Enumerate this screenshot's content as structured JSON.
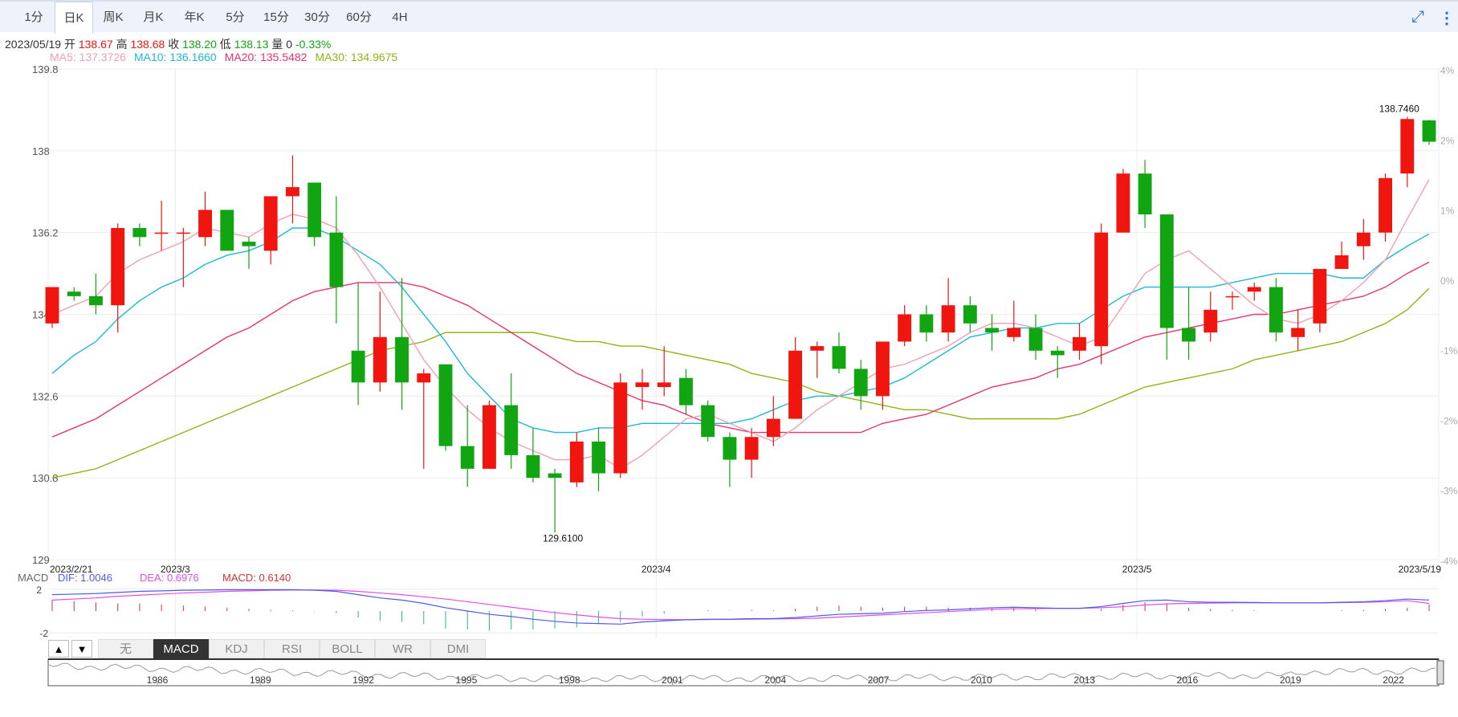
{
  "periods": [
    "1分",
    "日K",
    "周K",
    "月K",
    "年K",
    "5分",
    "15分",
    "30分",
    "60分",
    "4H"
  ],
  "active_period": "日K",
  "toolbar": {
    "collapse_icon": "collapse-icon",
    "more_icon": "more-vertical-icon"
  },
  "quote": {
    "date": "2023/05/19",
    "open_label": "开",
    "open": "138.67",
    "high_label": "高",
    "high": "138.68",
    "close_label": "收",
    "close": "138.20",
    "low_label": "低",
    "low": "138.13",
    "volume_label": "量",
    "volume": "0",
    "change": "-0.33%"
  },
  "ma_legend": [
    {
      "text": "MA5: 137.3726",
      "color": "#f0a0b4"
    },
    {
      "text": "MA10: 136.1660",
      "color": "#1fb8d8"
    },
    {
      "text": "MA20: 135.5482",
      "color": "#e8336d"
    },
    {
      "text": "MA30: 134.9675",
      "color": "#8db517"
    }
  ],
  "macd_legend": {
    "label": "MACD",
    "dif": "DIF: 1.0046",
    "dea": "DEA: 0.6976",
    "macd": "MACD: 0.6140"
  },
  "indicator_tabs": [
    "无",
    "MACD",
    "KDJ",
    "RSI",
    "BOLL",
    "WR",
    "DMI"
  ],
  "active_indicator": "MACD",
  "nav_arrows": {
    "up": "▲",
    "down": "▼"
  },
  "colors": {
    "up": "#f0150f",
    "down": "#11a611",
    "grid": "#ececec",
    "dif": "#4a5ce8",
    "dea": "#e64ce6"
  },
  "chart_data": {
    "type": "candlestick",
    "price_axis": {
      "ticks": [
        "139.8",
        "138",
        "136.2",
        "134.4",
        "132.6",
        "130.8",
        "129"
      ],
      "ylim": [
        129,
        139.8
      ]
    },
    "pct_axis": {
      "ticks": [
        "4%",
        "2%",
        "1%",
        "0%",
        "-1%",
        "-2%",
        "-3%",
        "-4%"
      ]
    },
    "x_labels": [
      "2023/2/21",
      "2023/3",
      "2023/4",
      "2023/5",
      "2023/5/19"
    ],
    "annotations": [
      "129.6100",
      "138.7460"
    ],
    "candles": [
      [
        134.2,
        135.0,
        134.1,
        135.0
      ],
      [
        134.9,
        134.8,
        134.7,
        135.0
      ],
      [
        134.8,
        134.6,
        134.4,
        135.3
      ],
      [
        134.6,
        136.3,
        134.0,
        136.4
      ],
      [
        136.3,
        136.1,
        135.9,
        136.4
      ],
      [
        136.2,
        136.2,
        135.8,
        136.9
      ],
      [
        136.2,
        136.2,
        135.0,
        136.3
      ],
      [
        136.1,
        136.7,
        135.9,
        137.1
      ],
      [
        136.7,
        135.8,
        135.8,
        136.7
      ],
      [
        136.0,
        135.9,
        135.4,
        136.1
      ],
      [
        135.8,
        137.0,
        135.5,
        137.0
      ],
      [
        137.0,
        137.2,
        136.4,
        137.9
      ],
      [
        137.3,
        136.1,
        135.9,
        137.3
      ],
      [
        136.2,
        135.0,
        134.2,
        137.0
      ],
      [
        133.6,
        132.9,
        132.4,
        135.1
      ],
      [
        132.9,
        133.9,
        132.7,
        134.9
      ],
      [
        133.9,
        132.9,
        132.3,
        135.2
      ],
      [
        132.9,
        133.1,
        131.0,
        133.2
      ],
      [
        133.3,
        131.5,
        131.4,
        133.3
      ],
      [
        131.5,
        131.0,
        130.6,
        132.4
      ],
      [
        131.0,
        132.4,
        131.0,
        132.5
      ],
      [
        132.4,
        131.3,
        131.0,
        133.1
      ],
      [
        131.3,
        130.8,
        130.7,
        131.9
      ],
      [
        130.9,
        130.8,
        129.6,
        131.0
      ],
      [
        130.7,
        131.6,
        130.6,
        131.8
      ],
      [
        131.6,
        130.9,
        130.5,
        131.9
      ],
      [
        130.9,
        132.9,
        130.8,
        133.1
      ],
      [
        132.8,
        132.9,
        132.3,
        133.2
      ],
      [
        132.8,
        132.9,
        132.6,
        133.7
      ],
      [
        133.0,
        132.4,
        132.2,
        133.2
      ],
      [
        132.4,
        131.7,
        131.6,
        132.5
      ],
      [
        131.7,
        131.2,
        130.6,
        131.8
      ],
      [
        131.2,
        131.7,
        130.8,
        131.9
      ],
      [
        131.7,
        132.1,
        131.5,
        132.6
      ],
      [
        132.1,
        133.6,
        132.1,
        133.9
      ],
      [
        133.6,
        133.7,
        133.0,
        133.8
      ],
      [
        133.7,
        133.2,
        133.1,
        134.0
      ],
      [
        133.2,
        132.6,
        132.3,
        133.4
      ],
      [
        132.6,
        133.8,
        132.3,
        133.8
      ],
      [
        133.8,
        134.4,
        133.7,
        134.6
      ],
      [
        134.4,
        134.0,
        133.8,
        134.6
      ],
      [
        134.0,
        134.6,
        133.8,
        135.2
      ],
      [
        134.6,
        134.2,
        134.0,
        134.8
      ],
      [
        134.1,
        134.0,
        133.6,
        134.4
      ],
      [
        133.9,
        134.1,
        133.8,
        134.7
      ],
      [
        134.1,
        133.6,
        133.4,
        134.4
      ],
      [
        133.6,
        133.5,
        133.0,
        133.7
      ],
      [
        133.6,
        133.9,
        133.4,
        134.2
      ],
      [
        133.7,
        136.2,
        133.3,
        136.4
      ],
      [
        136.2,
        137.5,
        136.2,
        137.6
      ],
      [
        137.5,
        136.6,
        136.3,
        137.8
      ],
      [
        136.6,
        134.1,
        133.4,
        136.6
      ],
      [
        134.1,
        133.8,
        133.4,
        135.0
      ],
      [
        134.0,
        134.5,
        133.8,
        134.9
      ],
      [
        134.8,
        134.8,
        134.5,
        134.9
      ],
      [
        134.9,
        135.0,
        134.7,
        135.1
      ],
      [
        135.0,
        134.0,
        133.8,
        135.2
      ],
      [
        133.9,
        134.1,
        133.6,
        134.5
      ],
      [
        134.2,
        135.4,
        134.0,
        135.4
      ],
      [
        135.4,
        135.7,
        135.4,
        136.0
      ],
      [
        135.9,
        136.2,
        135.6,
        136.5
      ],
      [
        136.2,
        137.4,
        136.0,
        137.5
      ],
      [
        137.5,
        138.7,
        137.2,
        138.75
      ],
      [
        138.67,
        138.2,
        138.13,
        138.68
      ]
    ],
    "ma5": [
      134.4,
      134.6,
      134.8,
      135.3,
      135.6,
      135.8,
      136.0,
      136.3,
      136.2,
      136.1,
      136.4,
      136.6,
      136.5,
      136.3,
      135.7,
      135.0,
      134.2,
      133.4,
      132.8,
      132.3,
      131.9,
      131.6,
      131.4,
      131.2,
      131.2,
      131.3,
      131.0,
      131.3,
      131.7,
      132.1,
      132.2,
      132.0,
      131.8,
      131.6,
      131.9,
      132.3,
      132.6,
      132.9,
      133.2,
      133.3,
      133.5,
      133.7,
      134.0,
      134.2,
      134.2,
      134.1,
      133.9,
      133.7,
      133.9,
      134.6,
      135.3,
      135.6,
      135.8,
      135.4,
      135.0,
      134.6,
      134.3,
      134.2,
      134.4,
      134.7,
      135.1,
      135.6,
      136.5,
      137.37
    ],
    "ma10": [
      133.1,
      133.5,
      133.8,
      134.3,
      134.7,
      135.0,
      135.2,
      135.5,
      135.7,
      135.8,
      136.0,
      136.3,
      136.3,
      136.1,
      135.8,
      135.5,
      135.0,
      134.4,
      133.8,
      133.1,
      132.6,
      132.1,
      131.9,
      131.8,
      131.8,
      131.9,
      131.9,
      132.0,
      132.0,
      132.0,
      132.0,
      132.0,
      132.1,
      132.3,
      132.5,
      132.6,
      132.6,
      132.7,
      132.8,
      133.0,
      133.3,
      133.6,
      133.9,
      134.0,
      134.1,
      134.1,
      134.2,
      134.2,
      134.5,
      134.8,
      135.0,
      135.0,
      135.0,
      135.0,
      135.1,
      135.2,
      135.3,
      135.3,
      135.3,
      135.2,
      135.2,
      135.6,
      135.9,
      136.17
    ],
    "ma20": [
      131.7,
      131.9,
      132.1,
      132.4,
      132.7,
      133.0,
      133.3,
      133.6,
      133.9,
      134.1,
      134.4,
      134.7,
      134.9,
      135.0,
      135.1,
      135.1,
      135.1,
      135.0,
      134.8,
      134.6,
      134.3,
      134.0,
      133.7,
      133.4,
      133.1,
      132.9,
      132.7,
      132.5,
      132.4,
      132.2,
      132.0,
      131.9,
      131.8,
      131.8,
      131.8,
      131.8,
      131.8,
      131.8,
      132.0,
      132.1,
      132.2,
      132.4,
      132.6,
      132.8,
      132.9,
      133.0,
      133.2,
      133.3,
      133.5,
      133.7,
      133.9,
      134.0,
      134.1,
      134.2,
      134.3,
      134.4,
      134.4,
      134.5,
      134.6,
      134.7,
      134.8,
      135.0,
      135.3,
      135.55
    ],
    "ma30": [
      130.8,
      130.9,
      131.0,
      131.2,
      131.4,
      131.6,
      131.8,
      132.0,
      132.2,
      132.4,
      132.6,
      132.8,
      133.0,
      133.2,
      133.4,
      133.6,
      133.7,
      133.8,
      134.0,
      134.0,
      134.0,
      134.0,
      134.0,
      133.9,
      133.8,
      133.8,
      133.7,
      133.7,
      133.6,
      133.5,
      133.4,
      133.3,
      133.1,
      133.0,
      132.9,
      132.7,
      132.6,
      132.5,
      132.4,
      132.3,
      132.3,
      132.2,
      132.1,
      132.1,
      132.1,
      132.1,
      132.1,
      132.2,
      132.4,
      132.6,
      132.8,
      132.9,
      133.0,
      133.1,
      133.2,
      133.4,
      133.5,
      133.6,
      133.7,
      133.8,
      134.0,
      134.2,
      134.5,
      134.97
    ],
    "macd_panel": {
      "yticks": [
        "2",
        "-2"
      ],
      "ylim": [
        -2.5,
        2.5
      ]
    },
    "dif": [
      1.5,
      1.55,
      1.6,
      1.7,
      1.8,
      1.85,
      1.9,
      1.92,
      1.95,
      1.95,
      1.95,
      1.95,
      1.9,
      1.8,
      1.5,
      1.2,
      1.0,
      0.7,
      0.3,
      0.0,
      -0.3,
      -0.5,
      -0.75,
      -0.95,
      -1.1,
      -1.15,
      -1.2,
      -1.0,
      -0.9,
      -0.8,
      -0.75,
      -0.75,
      -0.7,
      -0.7,
      -0.6,
      -0.45,
      -0.3,
      -0.25,
      -0.2,
      -0.05,
      0.05,
      0.1,
      0.2,
      0.3,
      0.35,
      0.3,
      0.25,
      0.25,
      0.4,
      0.7,
      0.95,
      1.0,
      0.85,
      0.8,
      0.8,
      0.78,
      0.75,
      0.75,
      0.75,
      0.8,
      0.85,
      0.95,
      1.1,
      1.0046
    ],
    "dea": [
      1.0,
      1.1,
      1.2,
      1.35,
      1.45,
      1.55,
      1.65,
      1.72,
      1.8,
      1.85,
      1.9,
      1.92,
      1.92,
      1.9,
      1.8,
      1.65,
      1.5,
      1.3,
      1.1,
      0.85,
      0.6,
      0.35,
      0.1,
      -0.15,
      -0.35,
      -0.55,
      -0.7,
      -0.75,
      -0.78,
      -0.8,
      -0.78,
      -0.77,
      -0.75,
      -0.73,
      -0.7,
      -0.65,
      -0.55,
      -0.45,
      -0.35,
      -0.25,
      -0.15,
      -0.05,
      0.05,
      0.15,
      0.2,
      0.22,
      0.25,
      0.25,
      0.3,
      0.4,
      0.55,
      0.65,
      0.7,
      0.72,
      0.75,
      0.75,
      0.75,
      0.75,
      0.75,
      0.77,
      0.8,
      0.85,
      0.95,
      0.6976
    ],
    "range_axis": [
      "1986",
      "1989",
      "1992",
      "1995",
      "1998",
      "2001",
      "2004",
      "2007",
      "2010",
      "2013",
      "2016",
      "2019",
      "2022"
    ]
  }
}
